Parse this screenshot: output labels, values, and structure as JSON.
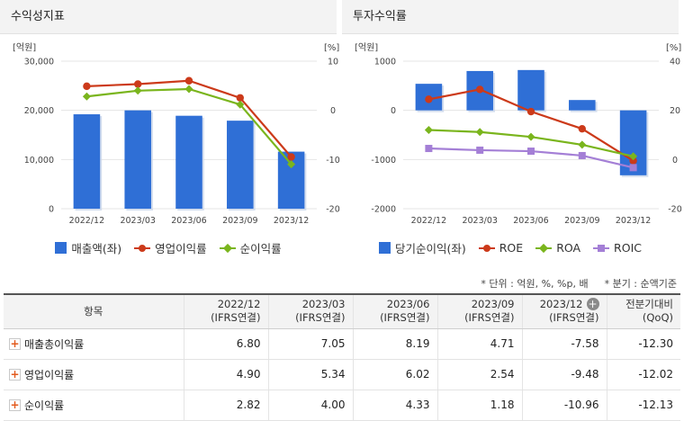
{
  "profit_panel": {
    "title": "수익성지표",
    "left_unit": "[억원]",
    "right_unit": "[%]",
    "legend": [
      {
        "label": "매출액(좌)",
        "color": "#2f6fd6",
        "shape": "box"
      },
      {
        "label": "영업이익률",
        "color": "#cc3a1a",
        "shape": "circle"
      },
      {
        "label": "순이익률",
        "color": "#7ab51d",
        "shape": "diamond"
      }
    ]
  },
  "invest_panel": {
    "title": "투자수익률",
    "left_unit": "[억원]",
    "right_unit": "[%]",
    "legend": [
      {
        "label": "당기순이익(좌)",
        "color": "#2f6fd6",
        "shape": "box"
      },
      {
        "label": "ROE",
        "color": "#cc3a1a",
        "shape": "circle"
      },
      {
        "label": "ROA",
        "color": "#7ab51d",
        "shape": "diamond"
      },
      {
        "label": "ROIC",
        "color": "#a47fd6",
        "shape": "square"
      }
    ]
  },
  "chart_data": [
    {
      "type": "bar",
      "title": "수익성지표",
      "categories": [
        "2022/12",
        "2023/03",
        "2023/06",
        "2023/09",
        "2023/12"
      ],
      "left_axis": {
        "label": "[억원]",
        "range": [
          0,
          30000
        ],
        "ticks": [
          "0",
          "10,000",
          "20,000",
          "30,000"
        ],
        "tick_values": [
          0,
          10000,
          20000,
          30000
        ]
      },
      "right_axis": {
        "label": "[%]",
        "range": [
          -20,
          10
        ],
        "ticks": [
          "-20",
          "-10",
          "0",
          "10"
        ],
        "tick_values": [
          -20,
          -10,
          0,
          10
        ]
      },
      "bars": {
        "name": "매출액(좌)",
        "color": "#2f6fd6",
        "values": [
          19200,
          20000,
          18900,
          17900,
          11600
        ]
      },
      "lines": [
        {
          "name": "영업이익률",
          "color": "#cc3a1a",
          "marker": "circle",
          "values": [
            4.9,
            5.34,
            6.02,
            2.54,
            -9.48
          ]
        },
        {
          "name": "순이익률",
          "color": "#7ab51d",
          "marker": "diamond",
          "values": [
            2.82,
            4.0,
            4.33,
            1.18,
            -10.96
          ]
        }
      ],
      "grid": true,
      "legend_position": "bottom"
    },
    {
      "type": "bar",
      "title": "투자수익률",
      "categories": [
        "2022/12",
        "2023/03",
        "2023/06",
        "2023/09",
        "2023/12"
      ],
      "left_axis": {
        "label": "[억원]",
        "range": [
          -2000,
          1000
        ],
        "ticks": [
          "-2000",
          "-1000",
          "0",
          "1000"
        ],
        "tick_values": [
          -2000,
          -1000,
          0,
          1000
        ]
      },
      "right_axis": {
        "label": "[%]",
        "range": [
          -20,
          40
        ],
        "ticks": [
          "-20",
          "0",
          "20",
          "40"
        ],
        "tick_values": [
          -20,
          0,
          20,
          40
        ]
      },
      "bars": {
        "name": "당기순이익(좌)",
        "color": "#2f6fd6",
        "values": [
          540,
          800,
          820,
          210,
          -1320
        ]
      },
      "lines": [
        {
          "name": "ROE",
          "color": "#cc3a1a",
          "marker": "circle",
          "values": [
            24.5,
            28.5,
            19.5,
            12.5,
            -0.5
          ]
        },
        {
          "name": "ROA",
          "color": "#7ab51d",
          "marker": "diamond",
          "values": [
            12.0,
            11.2,
            9.2,
            6.0,
            1.3
          ]
        },
        {
          "name": "ROIC",
          "color": "#a47fd6",
          "marker": "square",
          "values": [
            4.5,
            3.8,
            3.4,
            1.6,
            -3.3
          ]
        }
      ],
      "grid": true,
      "legend_position": "bottom"
    }
  ],
  "notes": {
    "unit": "* 단위 : 억원, %, %p, 배",
    "basis": "* 분기 : 순액기준"
  },
  "table": {
    "header_item": "항목",
    "periods": [
      {
        "date": "2022/12",
        "basis": "(IFRS연결)"
      },
      {
        "date": "2023/03",
        "basis": "(IFRS연결)"
      },
      {
        "date": "2023/06",
        "basis": "(IFRS연결)"
      },
      {
        "date": "2023/09",
        "basis": "(IFRS연결)"
      },
      {
        "date": "2023/12",
        "basis": "(IFRS연결)"
      }
    ],
    "qoq_header": {
      "line1": "전분기대비",
      "line2": "(QoQ)"
    },
    "rows": [
      {
        "label": "매출총이익률",
        "values": [
          "6.80",
          "7.05",
          "8.19",
          "4.71",
          "-7.58"
        ],
        "qoq": "-12.30"
      },
      {
        "label": "영업이익률",
        "values": [
          "4.90",
          "5.34",
          "6.02",
          "2.54",
          "-9.48"
        ],
        "qoq": "-12.02"
      },
      {
        "label": "순이익률",
        "values": [
          "2.82",
          "4.00",
          "4.33",
          "1.18",
          "-10.96"
        ],
        "qoq": "-12.13"
      }
    ]
  }
}
